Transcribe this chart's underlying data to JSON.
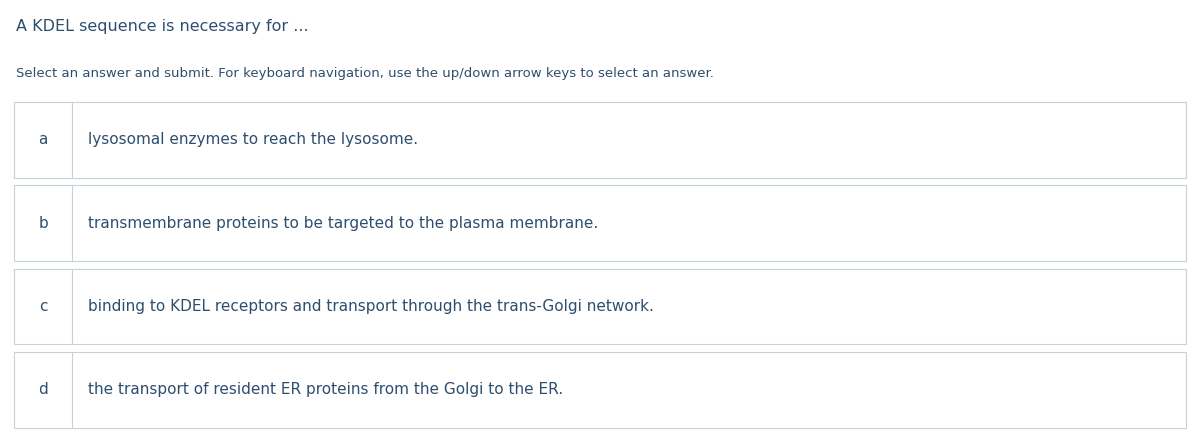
{
  "title": "A KDEL sequence is necessary for ...",
  "subtitle": "Select an answer and submit. For keyboard navigation, use the up/down arrow keys to select an answer.",
  "options": [
    {
      "letter": "a",
      "text": "lysosomal enzymes to reach the lysosome."
    },
    {
      "letter": "b",
      "text": "transmembrane proteins to be targeted to the plasma membrane."
    },
    {
      "letter": "c",
      "text": "binding to KDEL receptors and transport through the trans-Golgi network."
    },
    {
      "letter": "d",
      "text": "the transport of resident ER proteins from the Golgi to the ER."
    }
  ],
  "background_color": "#ffffff",
  "title_color": "#2e4e6e",
  "subtitle_color": "#2e4e6e",
  "option_letter_color": "#2e4e6e",
  "option_text_color": "#2e4e6e",
  "box_border_color": "#c8d0d8",
  "box_fill_color": "#ffffff",
  "divider_color": "#c8d0d8",
  "title_fontsize": 11.5,
  "subtitle_fontsize": 9.5,
  "option_fontsize": 11,
  "letter_fontsize": 11
}
